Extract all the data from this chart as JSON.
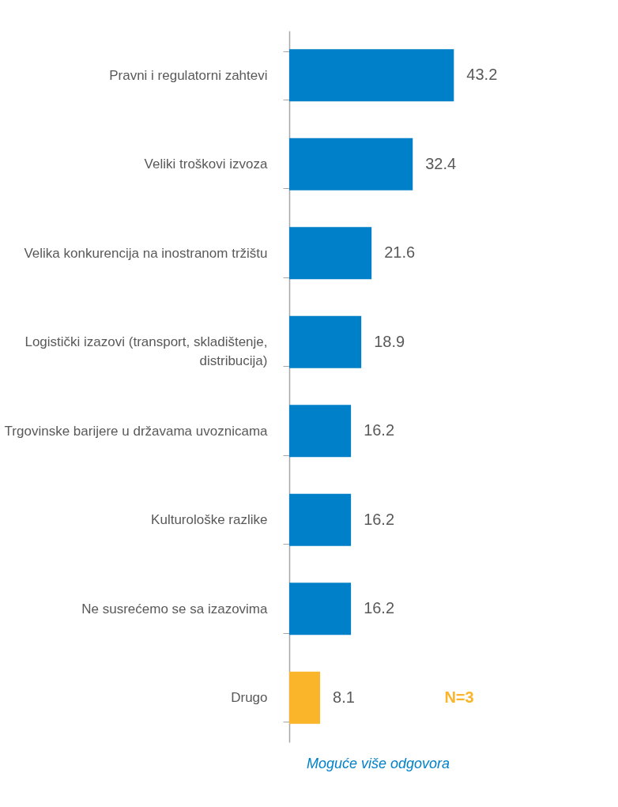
{
  "chart_data": {
    "type": "bar",
    "orientation": "horizontal",
    "data_labels": true,
    "categories": [
      "Pravni i regulatorni zahtevi",
      "Veliki troškovi izvoza",
      "Velika konkurencija na inostranom tržištu",
      "Logistički izazovi (transport, skladištenje, distribucija)",
      "Trgovinske barijere u državama uvoznicama",
      "Kulturološke razlike",
      "Ne susrećemo se sa izazovima",
      "Drugo"
    ],
    "values": [
      43.2,
      32.4,
      21.6,
      18.9,
      16.2,
      16.2,
      16.2,
      8.1
    ],
    "colors": [
      "#0080c8",
      "#0080c8",
      "#0080c8",
      "#0080c8",
      "#0080c8",
      "#0080c8",
      "#0080c8",
      "#fbb52b"
    ],
    "annotations": [
      "N=3",
      "Moguće više odgovora"
    ],
    "grid": false
  }
}
